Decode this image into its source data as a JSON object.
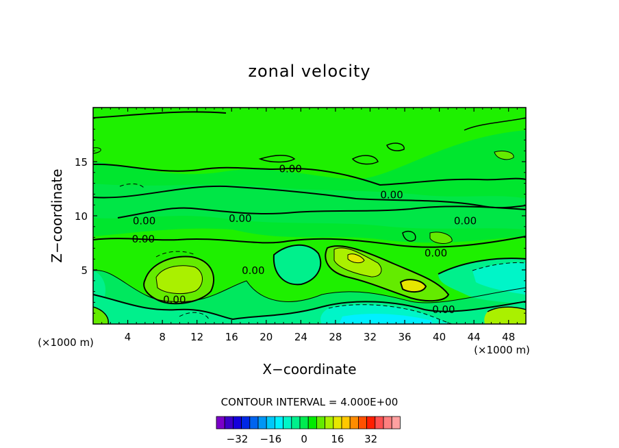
{
  "chart_data": {
    "type": "heatmap",
    "subtype": "filled-contour",
    "title": "zonal velocity",
    "xlabel": "X−coordinate",
    "ylabel": "Z−coordinate",
    "x_unit": "(×1000 m)",
    "y_unit": "(×1000 m)",
    "xlim": [
      0,
      50
    ],
    "ylim": [
      0,
      20
    ],
    "x_ticks": [
      4,
      8,
      12,
      16,
      20,
      24,
      28,
      32,
      36,
      40,
      44,
      48
    ],
    "y_ticks": [
      5,
      10,
      15
    ],
    "contour_interval_text": "CONTOUR INTERVAL = 4.000E+00",
    "contour_label": "0.00",
    "contour_label_positions": [
      [
        22.8,
        14.4
      ],
      [
        34.5,
        12.0
      ],
      [
        5.9,
        9.6
      ],
      [
        17.0,
        9.8
      ],
      [
        43.0,
        9.6
      ],
      [
        5.8,
        7.9
      ],
      [
        18.5,
        5.0
      ],
      [
        9.4,
        2.3
      ],
      [
        39.6,
        6.6
      ],
      [
        40.5,
        1.4
      ]
    ],
    "colorbar": {
      "levels": [
        -36,
        -32,
        -28,
        -24,
        -20,
        -16,
        -12,
        -8,
        -4,
        0,
        4,
        8,
        12,
        16,
        20,
        24,
        28,
        32,
        36
      ],
      "colors": [
        "#7a00c8",
        "#3c00c8",
        "#1400dc",
        "#0028e6",
        "#0064f0",
        "#0096f5",
        "#00c8fa",
        "#00f0ff",
        "#00f5c8",
        "#00f08c",
        "#00eb50",
        "#00eb00",
        "#64eb00",
        "#aaf000",
        "#e6e600",
        "#ffc800",
        "#ff8c00",
        "#ff5000",
        "#ff1e00",
        "#ff5050",
        "#ff8080",
        "#ffa0a0"
      ],
      "tick_labels": [
        -32,
        -16,
        0,
        16,
        32
      ]
    }
  }
}
